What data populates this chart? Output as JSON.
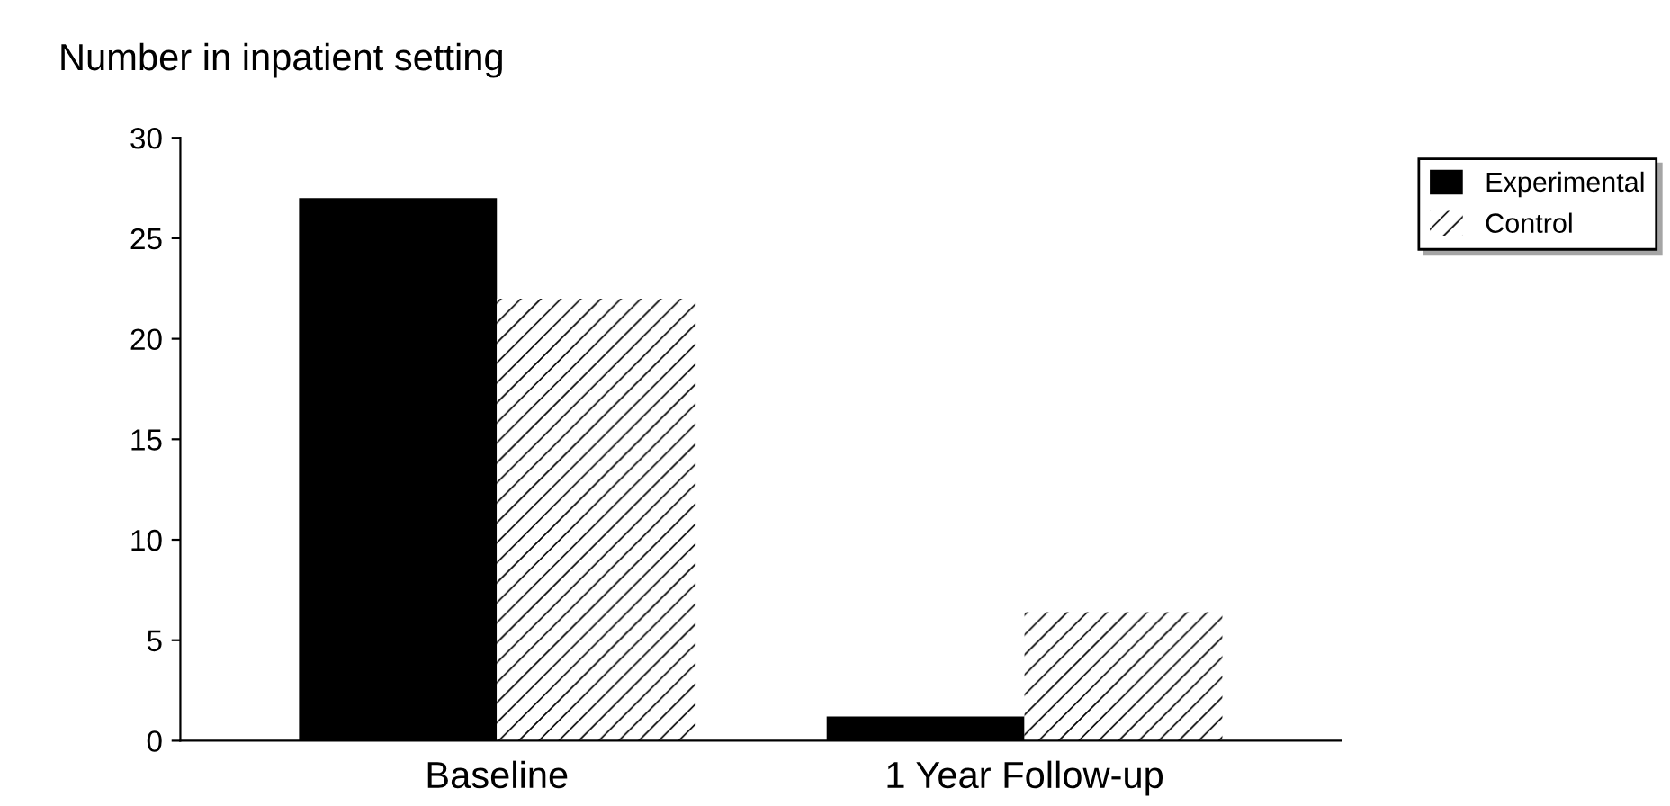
{
  "chart_data": {
    "type": "bar",
    "ylabel": "Number in inpatient setting",
    "categories": [
      "Baseline",
      "1 Year Follow-up"
    ],
    "series": [
      {
        "name": "Experimental",
        "color": "#000000",
        "values": [
          27,
          1.2
        ]
      },
      {
        "name": "Control",
        "color": "#ffffff",
        "values": [
          22,
          6.4
        ]
      }
    ],
    "ylim": [
      0,
      30
    ],
    "yticks": [
      0,
      5,
      10,
      15,
      20,
      25,
      30
    ],
    "grid": false,
    "legend": "top right"
  }
}
